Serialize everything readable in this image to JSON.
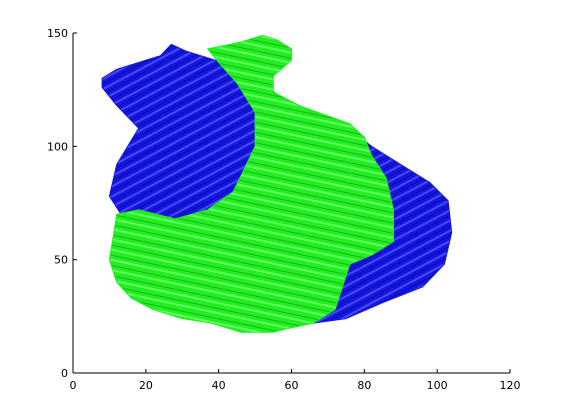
{
  "chart_data": {
    "type": "area",
    "title": "",
    "xlabel": "",
    "ylabel": "",
    "xlim": [
      0,
      120
    ],
    "ylim": [
      0,
      150
    ],
    "xticks": [
      0,
      20,
      40,
      60,
      80,
      100,
      120
    ],
    "yticks": [
      0,
      50,
      100,
      150
    ],
    "xtick_labels": [
      "0",
      "20",
      "40",
      "60",
      "80",
      "100",
      "120"
    ],
    "ytick_labels": [
      "0",
      "50",
      "100",
      "150"
    ],
    "grid": false,
    "legend": "none",
    "series": [
      {
        "color": "#1515e0",
        "region": "back-top",
        "outline": [
          [
            8,
            130
          ],
          [
            12,
            134
          ],
          [
            18,
            137
          ],
          [
            24,
            140
          ],
          [
            27,
            145
          ],
          [
            31,
            142
          ],
          [
            37,
            139
          ],
          [
            43,
            136
          ],
          [
            50,
            130
          ],
          [
            56,
            123
          ],
          [
            62,
            118
          ],
          [
            68,
            114
          ],
          [
            74,
            110
          ],
          [
            82,
            100
          ],
          [
            92,
            90
          ],
          [
            98,
            84
          ],
          [
            103,
            76
          ],
          [
            104,
            62
          ],
          [
            102,
            48
          ],
          [
            96,
            38
          ],
          [
            85,
            31
          ],
          [
            75,
            24
          ],
          [
            66,
            22
          ],
          [
            61,
            27
          ],
          [
            62,
            37
          ],
          [
            66,
            48
          ],
          [
            72,
            54
          ],
          [
            77,
            64
          ],
          [
            78,
            78
          ],
          [
            73,
            92
          ],
          [
            63,
            100
          ],
          [
            55,
            104
          ],
          [
            48,
            94
          ],
          [
            46,
            82
          ],
          [
            43,
            72
          ],
          [
            33,
            68
          ],
          [
            22,
            66
          ],
          [
            14,
            68
          ],
          [
            10,
            78
          ],
          [
            12,
            92
          ],
          [
            18,
            108
          ],
          [
            12,
            118
          ],
          [
            8,
            126
          ]
        ]
      },
      {
        "color": "#22ee22",
        "region": "front-green",
        "outline": [
          [
            37,
            143
          ],
          [
            46,
            146
          ],
          [
            52,
            149
          ],
          [
            56,
            147
          ],
          [
            60,
            143
          ],
          [
            60,
            138
          ],
          [
            55,
            131
          ],
          [
            55,
            124
          ],
          [
            62,
            118
          ],
          [
            69,
            114
          ],
          [
            76,
            110
          ],
          [
            80,
            104
          ],
          [
            82,
            96
          ],
          [
            86,
            86
          ],
          [
            88,
            72
          ],
          [
            88,
            58
          ],
          [
            82,
            52
          ],
          [
            76,
            48
          ],
          [
            74,
            38
          ],
          [
            72,
            28
          ],
          [
            66,
            22
          ],
          [
            60,
            20
          ],
          [
            55,
            18
          ],
          [
            46,
            18
          ],
          [
            38,
            22
          ],
          [
            30,
            24
          ],
          [
            22,
            28
          ],
          [
            16,
            33
          ],
          [
            12,
            40
          ],
          [
            10,
            50
          ],
          [
            11,
            60
          ],
          [
            12,
            70
          ],
          [
            18,
            72
          ],
          [
            28,
            68
          ],
          [
            37,
            72
          ],
          [
            44,
            80
          ],
          [
            47,
            90
          ],
          [
            50,
            100
          ],
          [
            50,
            115
          ],
          [
            45,
            128
          ],
          [
            40,
            137
          ]
        ]
      }
    ]
  }
}
